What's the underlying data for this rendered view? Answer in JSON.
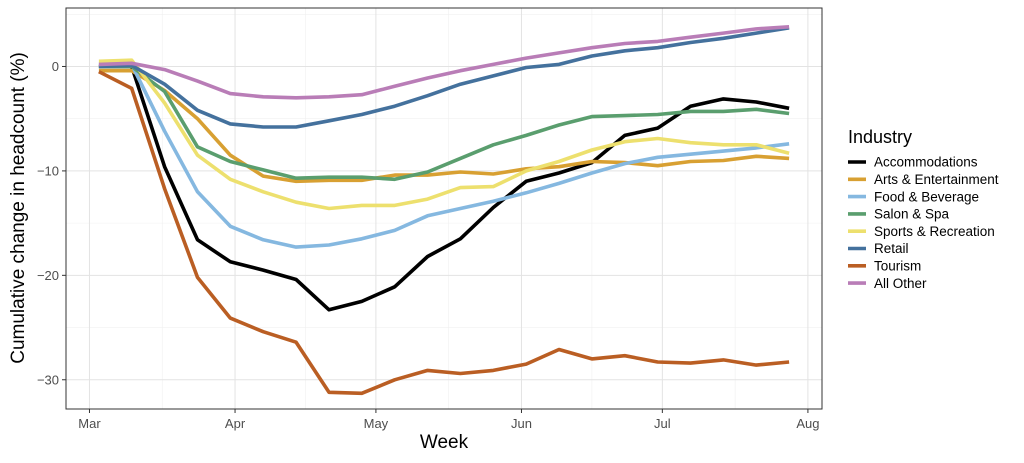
{
  "chart_data": {
    "type": "line",
    "title": "",
    "xlabel": "Week",
    "ylabel": "Cumulative change in headcount (%)",
    "x_ticks": [
      {
        "date": "2020-03-01",
        "label": "Mar"
      },
      {
        "date": "2020-04-01",
        "label": "Apr"
      },
      {
        "date": "2020-05-01",
        "label": "May"
      },
      {
        "date": "2020-06-01",
        "label": "Jun"
      },
      {
        "date": "2020-07-01",
        "label": "Jul"
      },
      {
        "date": "2020-08-01",
        "label": "Aug"
      }
    ],
    "y_ticks": [
      0,
      -10,
      -20,
      -30
    ],
    "xlim": [
      "2020-02-25",
      "2020-08-04"
    ],
    "ylim": [
      -32.8,
      5.6
    ],
    "grid": true,
    "legend": {
      "title": "Industry",
      "position": "right"
    },
    "x": [
      "2020-03-03",
      "2020-03-10",
      "2020-03-17",
      "2020-03-24",
      "2020-03-31",
      "2020-04-07",
      "2020-04-14",
      "2020-04-21",
      "2020-04-28",
      "2020-05-05",
      "2020-05-12",
      "2020-05-19",
      "2020-05-26",
      "2020-06-02",
      "2020-06-09",
      "2020-06-16",
      "2020-06-23",
      "2020-06-30",
      "2020-07-07",
      "2020-07-14",
      "2020-07-21",
      "2020-07-28"
    ],
    "series": [
      {
        "name": "Accommodations",
        "color": "#000000",
        "values": [
          0.0,
          0.0,
          -9.6,
          -16.6,
          -18.7,
          -19.5,
          -20.4,
          -23.3,
          -22.5,
          -21.1,
          -18.2,
          -16.5,
          -13.5,
          -11.0,
          -10.2,
          -9.2,
          -6.6,
          -5.9,
          -3.8,
          -3.1,
          -3.4,
          -4.0
        ]
      },
      {
        "name": "Arts & Entertainment",
        "color": "#d8a032",
        "values": [
          -0.4,
          -0.4,
          -2.3,
          -5.0,
          -8.5,
          -10.5,
          -11.0,
          -10.9,
          -10.9,
          -10.4,
          -10.4,
          -10.1,
          -10.3,
          -9.8,
          -9.6,
          -9.1,
          -9.2,
          -9.5,
          -9.1,
          -9.0,
          -8.6,
          -8.8
        ]
      },
      {
        "name": "Food & Beverage",
        "color": "#85b8e0",
        "values": [
          0.3,
          0.2,
          -6.2,
          -12.0,
          -15.3,
          -16.6,
          -17.3,
          -17.1,
          -16.5,
          -15.7,
          -14.3,
          -13.6,
          -12.9,
          -12.1,
          -11.2,
          -10.2,
          -9.3,
          -8.7,
          -8.4,
          -8.1,
          -7.8,
          -7.4
        ]
      },
      {
        "name": "Salon & Spa",
        "color": "#5a9e6e",
        "values": [
          0.0,
          0.0,
          -2.4,
          -7.7,
          -9.1,
          -9.9,
          -10.7,
          -10.6,
          -10.6,
          -10.8,
          -10.1,
          -8.8,
          -7.5,
          -6.6,
          -5.6,
          -4.8,
          -4.7,
          -4.6,
          -4.3,
          -4.3,
          -4.1,
          -4.5
        ]
      },
      {
        "name": "Sports & Recreation",
        "color": "#ede06e",
        "values": [
          0.5,
          0.6,
          -3.5,
          -8.5,
          -10.8,
          -12.0,
          -13.0,
          -13.6,
          -13.3,
          -13.3,
          -12.7,
          -11.6,
          -11.5,
          -10.0,
          -9.1,
          -8.0,
          -7.2,
          -6.9,
          -7.3,
          -7.5,
          -7.5,
          -8.3
        ]
      },
      {
        "name": "Retail",
        "color": "#44719d",
        "values": [
          0.0,
          0.1,
          -1.7,
          -4.2,
          -5.5,
          -5.8,
          -5.8,
          -5.2,
          -4.6,
          -3.8,
          -2.8,
          -1.7,
          -0.9,
          -0.1,
          0.2,
          1.0,
          1.5,
          1.8,
          2.3,
          2.7,
          3.2,
          3.7
        ]
      },
      {
        "name": "Tourism",
        "color": "#ba5e23",
        "values": [
          -0.5,
          -2.1,
          -11.7,
          -20.2,
          -24.1,
          -25.4,
          -26.4,
          -31.2,
          -31.3,
          -30.0,
          -29.1,
          -29.4,
          -29.1,
          -28.5,
          -27.1,
          -28.0,
          -27.7,
          -28.3,
          -28.4,
          -28.1,
          -28.6,
          -28.3
        ]
      },
      {
        "name": "All Other",
        "color": "#b97db7",
        "values": [
          0.2,
          0.3,
          -0.3,
          -1.4,
          -2.6,
          -2.9,
          -3.0,
          -2.9,
          -2.7,
          -1.9,
          -1.1,
          -0.4,
          0.2,
          0.8,
          1.3,
          1.8,
          2.2,
          2.4,
          2.8,
          3.2,
          3.6,
          3.8
        ]
      }
    ]
  }
}
